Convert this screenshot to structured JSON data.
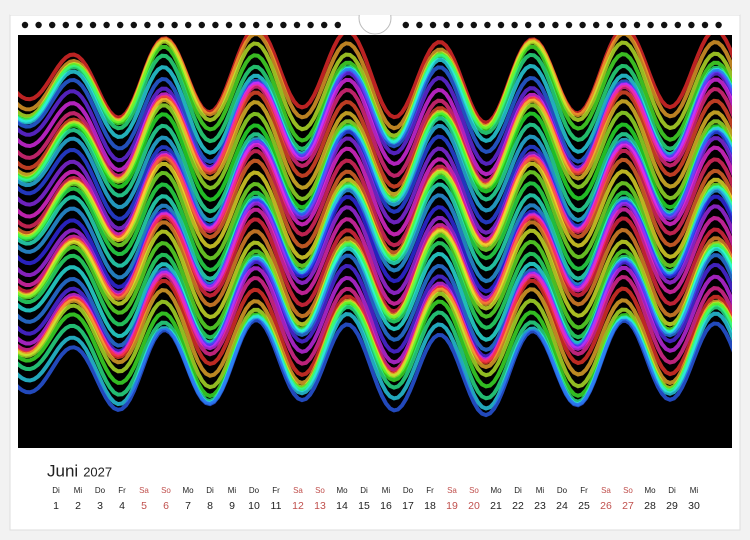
{
  "calendar": {
    "month": "Juni",
    "year": "2027",
    "days": [
      {
        "weekday": "Di",
        "day": 1
      },
      {
        "weekday": "Mi",
        "day": 2
      },
      {
        "weekday": "Do",
        "day": 3
      },
      {
        "weekday": "Fr",
        "day": 4
      },
      {
        "weekday": "Sa",
        "day": 5,
        "color": "#c0504d"
      },
      {
        "weekday": "So",
        "day": 6,
        "color": "#c0504d"
      },
      {
        "weekday": "Mo",
        "day": 7
      },
      {
        "weekday": "Di",
        "day": 8
      },
      {
        "weekday": "Mi",
        "day": 9
      },
      {
        "weekday": "Do",
        "day": 10
      },
      {
        "weekday": "Fr",
        "day": 11
      },
      {
        "weekday": "Sa",
        "day": 12,
        "color": "#c0504d"
      },
      {
        "weekday": "So",
        "day": 13,
        "color": "#c0504d"
      },
      {
        "weekday": "Mo",
        "day": 14
      },
      {
        "weekday": "Di",
        "day": 15
      },
      {
        "weekday": "Mi",
        "day": 16
      },
      {
        "weekday": "Do",
        "day": 17
      },
      {
        "weekday": "Fr",
        "day": 18
      },
      {
        "weekday": "Sa",
        "day": 19,
        "color": "#c0504d"
      },
      {
        "weekday": "So",
        "day": 20,
        "color": "#c0504d"
      },
      {
        "weekday": "Mo",
        "day": 21
      },
      {
        "weekday": "Di",
        "day": 22
      },
      {
        "weekday": "Mi",
        "day": 23
      },
      {
        "weekday": "Do",
        "day": 24
      },
      {
        "weekday": "Fr",
        "day": 25
      },
      {
        "weekday": "Sa",
        "day": 26,
        "color": "#c0504d"
      },
      {
        "weekday": "So",
        "day": 27,
        "color": "#c0504d"
      },
      {
        "weekday": "Mo",
        "day": 28
      },
      {
        "weekday": "Di",
        "day": 29
      },
      {
        "weekday": "Mi",
        "day": 30
      }
    ]
  }
}
